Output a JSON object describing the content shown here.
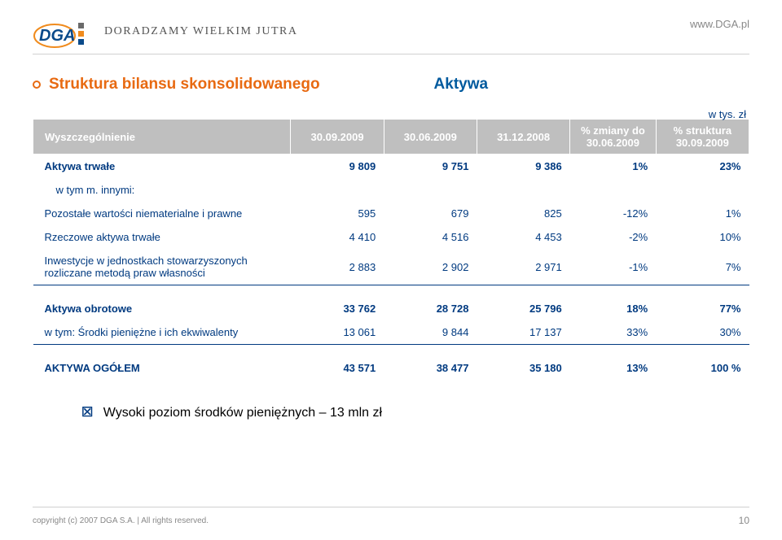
{
  "header": {
    "tagline": "DORADZAMY WIELKIM JUTRA",
    "url": "www.DGA.pl",
    "logo": {
      "blue": "#0a4a8a",
      "orange": "#f08b1d",
      "gray": "#6a6a6a"
    }
  },
  "title": {
    "left": "Struktura bilansu skonsolidowanego",
    "right": "Aktywa",
    "color_left": "#e86a12",
    "color_right": "#005a9e"
  },
  "table": {
    "unit": "w tys. zł",
    "header_bg": "#bfbfbf",
    "header_fg": "#ffffff",
    "text_color": "#003a80",
    "columns": [
      "Wyszczególnienie",
      "30.09.2009",
      "30.06.2009",
      "31.12.2008",
      "% zmiany do 30.06.2009",
      "% struktura 30.09.2009"
    ],
    "rows": [
      {
        "label": "Aktywa trwałe",
        "v": [
          "9 809",
          "9 751",
          "9 386",
          "1%",
          "23%"
        ],
        "bold": true
      },
      {
        "label": "w tym m. innymi:",
        "v": [
          "",
          "",
          "",
          "",
          ""
        ],
        "indent": true
      },
      {
        "label": "Pozostałe wartości niematerialne i prawne",
        "v": [
          "595",
          "679",
          "825",
          "-12%",
          "1%"
        ],
        "sub": true
      },
      {
        "label": "Rzeczowe aktywa trwałe",
        "v": [
          "4 410",
          "4 516",
          "4 453",
          "-2%",
          "10%"
        ],
        "sub": true
      },
      {
        "label": "Inwestycje w jednostkach stowarzyszonych rozliczane metodą praw własności",
        "v": [
          "2 883",
          "2 902",
          "2 971",
          "-1%",
          "7%"
        ],
        "sub": true
      },
      {
        "label": "Aktywa obrotowe",
        "v": [
          "33 762",
          "28 728",
          "25 796",
          "18%",
          "77%"
        ],
        "bold": true,
        "topline": true
      },
      {
        "label": "w tym:      Środki pieniężne i ich ekwiwalenty",
        "v": [
          "13 061",
          "9 844",
          "17 137",
          "33%",
          "30%"
        ],
        "sub": true
      },
      {
        "label": "AKTYWA OGÓŁEM",
        "v": [
          "43 571",
          "38 477",
          "35 180",
          "13%",
          "100 %"
        ],
        "bold": true,
        "topline": true
      }
    ]
  },
  "note": {
    "tick": "☒",
    "text": "Wysoki poziom środków pieniężnych – 13 mln zł"
  },
  "footer": {
    "copyright": "copyright (c) 2007 DGA S.A. | All rights reserved.",
    "page": "10"
  }
}
